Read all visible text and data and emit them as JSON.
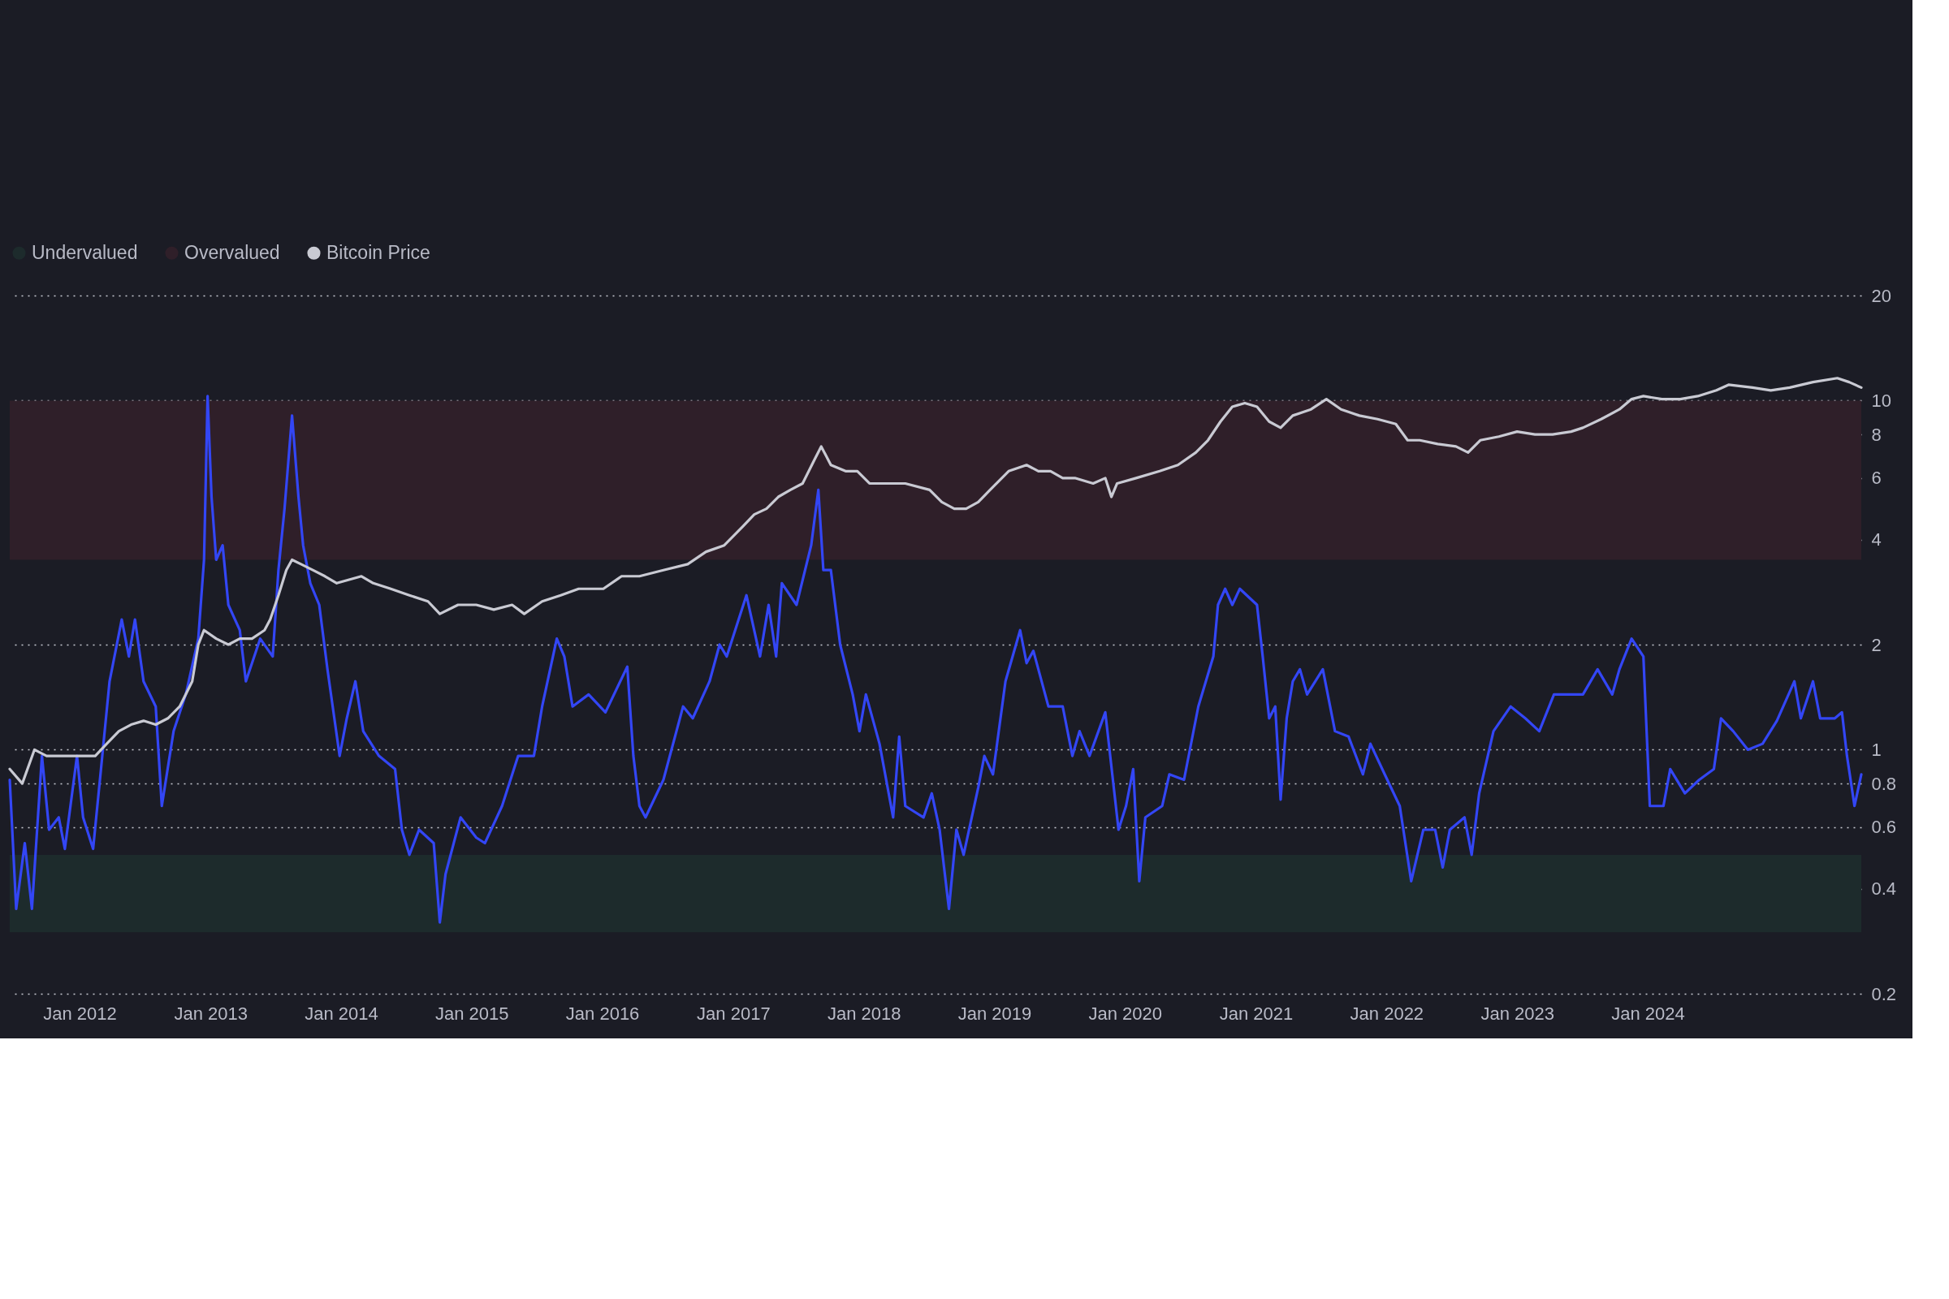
{
  "chart_data": {
    "type": "line",
    "xlim": [
      "2011-06-20",
      "2025-08-20"
    ],
    "xticks": [
      {
        "value": "2012-01-01",
        "label": "Jan 2012"
      },
      {
        "value": "2013-01-01",
        "label": "Jan 2013"
      },
      {
        "value": "2014-01-01",
        "label": "Jan 2014"
      },
      {
        "value": "2015-01-01",
        "label": "Jan 2015"
      },
      {
        "value": "2016-01-01",
        "label": "Jan 2016"
      },
      {
        "value": "2017-01-01",
        "label": "Jan 2017"
      },
      {
        "value": "2018-01-01",
        "label": "Jan 2018"
      },
      {
        "value": "2019-01-01",
        "label": "Jan 2019"
      },
      {
        "value": "2020-01-01",
        "label": "Jan 2020"
      },
      {
        "value": "2021-01-01",
        "label": "Jan 2021"
      },
      {
        "value": "2022-01-01",
        "label": "Jan 2022"
      },
      {
        "value": "2023-01-01",
        "label": "Jan 2023"
      },
      {
        "value": "2024-01-01",
        "label": "Jan 2024"
      }
    ],
    "ylim": [
      0.2,
      20
    ],
    "yticks": [
      0.2,
      0.4,
      0.6,
      0.8,
      1,
      2,
      4,
      6,
      8,
      10,
      20
    ],
    "log": "y",
    "grid": "y",
    "legend": "top left",
    "bands": [
      {
        "axis": "y",
        "from": 0.3,
        "to": 0.5,
        "label": "Undervalued",
        "color": "#1d2b2c"
      },
      {
        "axis": "y",
        "from": 3.5,
        "to": 10,
        "label": "Overvalued",
        "color": "#2f1f29"
      }
    ],
    "series": [
      {
        "color": "#3346f5",
        "x": [
          "2011-06-20",
          "2011-07-08",
          "2011-08-01",
          "2011-08-21",
          "2011-09-18",
          "2011-10-08",
          "2011-11-04",
          "2011-11-21",
          "2011-12-25",
          "2012-01-11",
          "2012-02-08",
          "2012-03-01",
          "2012-03-25",
          "2012-04-28",
          "2012-05-18",
          "2012-06-04",
          "2012-06-28",
          "2012-08-01",
          "2012-08-18",
          "2012-09-20",
          "2012-10-24",
          "2012-11-28",
          "2012-12-14",
          "2012-12-24",
          "2013-01-04",
          "2013-01-17",
          "2013-02-04",
          "2013-02-20",
          "2013-03-24",
          "2013-04-10",
          "2013-05-20",
          "2013-06-24",
          "2013-07-10",
          "2013-07-27",
          "2013-08-17",
          "2013-09-04",
          "2013-09-17",
          "2013-10-07",
          "2013-11-01",
          "2013-11-24",
          "2013-12-28",
          "2014-01-17",
          "2014-02-10",
          "2014-03-04",
          "2014-04-17",
          "2014-06-01",
          "2014-06-20",
          "2014-07-11",
          "2014-08-07",
          "2014-09-17",
          "2014-10-04",
          "2014-10-20",
          "2014-12-01",
          "2015-01-14",
          "2015-02-07",
          "2015-03-27",
          "2015-05-11",
          "2015-06-24",
          "2015-07-17",
          "2015-08-27",
          "2015-09-17",
          "2015-10-10",
          "2015-11-24",
          "2016-01-10",
          "2016-03-11",
          "2016-03-28",
          "2016-04-14",
          "2016-05-01",
          "2016-06-20",
          "2016-08-14",
          "2016-09-10",
          "2016-10-27",
          "2016-11-24",
          "2016-12-14",
          "2017-02-07",
          "2017-03-17",
          "2017-04-10",
          "2017-05-01",
          "2017-05-17",
          "2017-06-27",
          "2017-08-07",
          "2017-08-27",
          "2017-09-10",
          "2017-10-01",
          "2017-10-27",
          "2017-12-01",
          "2017-12-20",
          "2018-01-07",
          "2018-02-14",
          "2018-03-24",
          "2018-04-10",
          "2018-04-27",
          "2018-06-17",
          "2018-07-10",
          "2018-08-01",
          "2018-08-27",
          "2018-09-17",
          "2018-10-07",
          "2018-11-17",
          "2018-12-04",
          "2018-12-28",
          "2019-02-01",
          "2019-03-14",
          "2019-04-01",
          "2019-04-20",
          "2019-06-01",
          "2019-07-11",
          "2019-08-07",
          "2019-08-27",
          "2019-09-24",
          "2019-11-07",
          "2019-12-14",
          "2020-01-04",
          "2020-01-24",
          "2020-02-10",
          "2020-02-27",
          "2020-04-14",
          "2020-05-04",
          "2020-06-14",
          "2020-07-24",
          "2020-09-04",
          "2020-09-17",
          "2020-10-07",
          "2020-10-27",
          "2020-11-17",
          "2021-01-04",
          "2021-01-20",
          "2021-02-07",
          "2021-02-24",
          "2021-03-11",
          "2021-03-28",
          "2021-04-14",
          "2021-05-04",
          "2021-05-24",
          "2021-07-07",
          "2021-08-10",
          "2021-09-17",
          "2021-10-27",
          "2021-11-17",
          "2021-12-27",
          "2022-02-07",
          "2022-03-11",
          "2022-04-14",
          "2022-05-17",
          "2022-06-07",
          "2022-06-27",
          "2022-08-07",
          "2022-08-27",
          "2022-09-17",
          "2022-10-27",
          "2022-12-14",
          "2023-01-24",
          "2023-03-04",
          "2023-04-14",
          "2023-05-24",
          "2023-07-04",
          "2023-08-14",
          "2023-09-24",
          "2023-10-14",
          "2023-11-17",
          "2023-12-20",
          "2024-01-07",
          "2024-02-14",
          "2024-03-04",
          "2024-04-14",
          "2024-05-24",
          "2024-07-04",
          "2024-07-24",
          "2024-08-27",
          "2024-10-07",
          "2024-11-17",
          "2024-12-27",
          "2025-02-14",
          "2025-03-04",
          "2025-04-07",
          "2025-04-27",
          "2025-06-07",
          "2025-06-27",
          "2025-07-11",
          "2025-08-01",
          "2025-08-20"
        ],
        "values": [
          0.82,
          0.35,
          0.54,
          0.35,
          0.96,
          0.59,
          0.64,
          0.52,
          0.96,
          0.64,
          0.52,
          0.88,
          1.57,
          2.36,
          1.85,
          2.36,
          1.57,
          1.33,
          0.69,
          1.13,
          1.44,
          2.08,
          3.5,
          10.3,
          5.3,
          3.5,
          3.85,
          2.6,
          2.2,
          1.57,
          2.08,
          1.85,
          3.27,
          4.9,
          9.06,
          5.3,
          3.85,
          3.0,
          2.6,
          1.7,
          0.96,
          1.23,
          1.57,
          1.13,
          0.96,
          0.88,
          0.59,
          0.5,
          0.59,
          0.54,
          0.32,
          0.44,
          0.64,
          0.56,
          0.54,
          0.69,
          0.96,
          0.96,
          1.33,
          2.08,
          1.85,
          1.33,
          1.44,
          1.28,
          1.73,
          0.96,
          0.69,
          0.64,
          0.82,
          1.33,
          1.23,
          1.57,
          2.0,
          1.85,
          2.77,
          1.85,
          2.6,
          1.85,
          3.0,
          2.6,
          3.85,
          5.55,
          3.27,
          3.27,
          2.0,
          1.44,
          1.13,
          1.44,
          1.04,
          0.64,
          1.09,
          0.69,
          0.64,
          0.75,
          0.59,
          0.35,
          0.59,
          0.5,
          0.78,
          0.96,
          0.85,
          1.57,
          2.2,
          1.77,
          1.92,
          1.33,
          1.33,
          0.96,
          1.13,
          0.96,
          1.28,
          0.59,
          0.69,
          0.88,
          0.42,
          0.64,
          0.69,
          0.85,
          0.82,
          1.33,
          1.85,
          2.6,
          2.89,
          2.6,
          2.89,
          2.6,
          1.85,
          1.23,
          1.33,
          0.72,
          1.23,
          1.57,
          1.7,
          1.44,
          1.7,
          1.13,
          1.09,
          0.85,
          1.04,
          0.85,
          0.69,
          0.42,
          0.59,
          0.59,
          0.46,
          0.59,
          0.64,
          0.5,
          0.75,
          1.13,
          1.33,
          1.23,
          1.13,
          1.44,
          1.44,
          1.44,
          1.7,
          1.44,
          1.7,
          2.08,
          1.85,
          0.69,
          0.69,
          0.88,
          0.75,
          0.82,
          0.88,
          1.23,
          1.13,
          1.0,
          1.04,
          1.21,
          1.57,
          1.23,
          1.57,
          1.23,
          1.23,
          1.28,
          0.96,
          0.69,
          0.85
        ]
      },
      {
        "name": "Bitcoin Price",
        "color": "#c9cad3",
        "x": [
          "2011-06-20",
          "2011-07-25",
          "2011-08-28",
          "2011-10-01",
          "2011-12-08",
          "2012-02-14",
          "2012-03-17",
          "2012-04-20",
          "2012-05-24",
          "2012-06-28",
          "2012-08-01",
          "2012-09-04",
          "2012-10-07",
          "2012-11-11",
          "2012-11-28",
          "2012-12-14",
          "2013-01-17",
          "2013-02-20",
          "2013-03-24",
          "2013-04-27",
          "2013-06-01",
          "2013-06-17",
          "2013-07-10",
          "2013-08-01",
          "2013-08-17",
          "2013-09-11",
          "2013-10-14",
          "2013-11-17",
          "2013-12-20",
          "2014-02-27",
          "2014-04-01",
          "2014-05-20",
          "2014-07-11",
          "2014-09-01",
          "2014-10-04",
          "2014-11-24",
          "2015-01-14",
          "2015-03-04",
          "2015-04-24",
          "2015-05-28",
          "2015-07-17",
          "2015-09-07",
          "2015-10-27",
          "2016-01-04",
          "2016-02-24",
          "2016-04-14",
          "2016-06-20",
          "2016-08-27",
          "2016-10-17",
          "2016-12-07",
          "2017-01-27",
          "2017-03-01",
          "2017-04-04",
          "2017-05-07",
          "2017-06-10",
          "2017-07-14",
          "2017-08-17",
          "2017-09-04",
          "2017-10-01",
          "2017-11-11",
          "2017-12-14",
          "2018-01-17",
          "2018-03-07",
          "2018-04-27",
          "2018-07-04",
          "2018-08-07",
          "2018-09-11",
          "2018-10-14",
          "2018-11-17",
          "2018-12-20",
          "2019-02-10",
          "2019-04-01",
          "2019-05-04",
          "2019-06-07",
          "2019-07-11",
          "2019-08-14",
          "2019-10-04",
          "2019-11-07",
          "2019-11-24",
          "2019-12-10",
          "2020-02-01",
          "2020-04-07",
          "2020-05-28",
          "2020-07-17",
          "2020-08-20",
          "2020-09-24",
          "2020-10-27",
          "2020-12-01",
          "2021-01-04",
          "2021-02-07",
          "2021-03-11",
          "2021-04-14",
          "2021-06-04",
          "2021-07-17",
          "2021-08-27",
          "2021-10-17",
          "2021-12-07",
          "2022-01-27",
          "2022-03-01",
          "2022-04-04",
          "2022-05-24",
          "2022-07-14",
          "2022-08-17",
          "2022-09-20",
          "2022-11-11",
          "2023-01-01",
          "2023-02-20",
          "2023-04-10",
          "2023-06-01",
          "2023-07-04",
          "2023-08-24",
          "2023-10-14",
          "2023-11-17",
          "2023-12-20",
          "2024-02-10",
          "2024-04-01",
          "2024-05-20",
          "2024-07-11",
          "2024-08-14",
          "2024-10-20",
          "2024-12-10",
          "2025-02-01",
          "2025-04-07",
          "2025-06-14",
          "2025-07-17",
          "2025-08-20"
        ],
        "values": [
          0.88,
          0.8,
          1.0,
          0.96,
          0.96,
          0.96,
          1.04,
          1.13,
          1.18,
          1.21,
          1.18,
          1.23,
          1.33,
          1.57,
          2.0,
          2.2,
          2.08,
          2.0,
          2.08,
          2.08,
          2.2,
          2.36,
          2.77,
          3.27,
          3.5,
          3.4,
          3.27,
          3.14,
          3.0,
          3.14,
          3.0,
          2.89,
          2.77,
          2.66,
          2.45,
          2.6,
          2.6,
          2.52,
          2.6,
          2.45,
          2.66,
          2.77,
          2.89,
          2.89,
          3.14,
          3.14,
          3.27,
          3.4,
          3.69,
          3.85,
          4.35,
          4.72,
          4.9,
          5.3,
          5.55,
          5.79,
          6.8,
          7.39,
          6.54,
          6.28,
          6.28,
          5.79,
          5.79,
          5.79,
          5.55,
          5.12,
          4.9,
          4.9,
          5.12,
          5.55,
          6.28,
          6.54,
          6.28,
          6.28,
          6.0,
          6.0,
          5.79,
          6.0,
          5.3,
          5.79,
          6.0,
          6.28,
          6.54,
          7.1,
          7.7,
          8.71,
          9.6,
          9.84,
          9.6,
          8.71,
          8.36,
          9.06,
          9.44,
          10.1,
          9.44,
          9.06,
          8.85,
          8.57,
          7.7,
          7.7,
          7.51,
          7.39,
          7.1,
          7.7,
          7.89,
          8.15,
          8.0,
          8.0,
          8.15,
          8.36,
          8.85,
          9.44,
          10.1,
          10.3,
          10.1,
          10.1,
          10.3,
          10.7,
          11.1,
          10.9,
          10.7,
          10.9,
          11.3,
          11.6,
          11.3,
          10.9
        ]
      }
    ]
  }
}
